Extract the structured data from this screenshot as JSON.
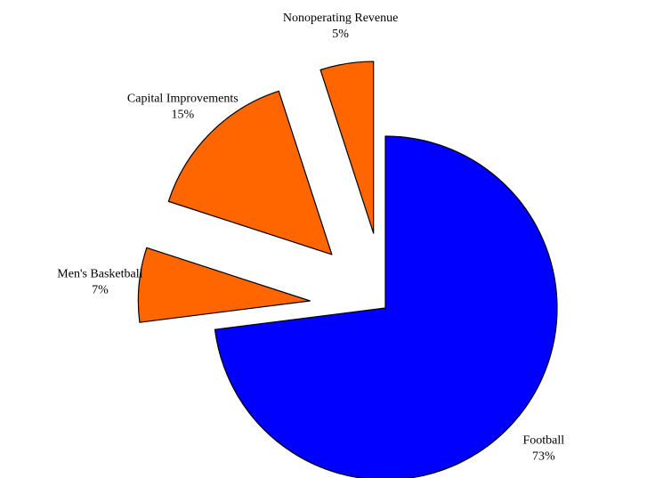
{
  "chart_data": {
    "type": "pie",
    "title": "",
    "exploded": true,
    "slices": [
      {
        "label": "Football",
        "percent_label": "73%",
        "value": 73,
        "color": "#0000ff",
        "exploded": false
      },
      {
        "label": "Men's Basketball",
        "percent_label": "7%",
        "value": 7,
        "color": "#ff6600",
        "exploded": true
      },
      {
        "label": "Capital Improvements",
        "percent_label": "15%",
        "value": 15,
        "color": "#ff6600",
        "exploded": true
      },
      {
        "label": "Nonoperating Revenue",
        "percent_label": "5%",
        "value": 5,
        "color": "#ff6600",
        "exploded": true
      }
    ]
  }
}
